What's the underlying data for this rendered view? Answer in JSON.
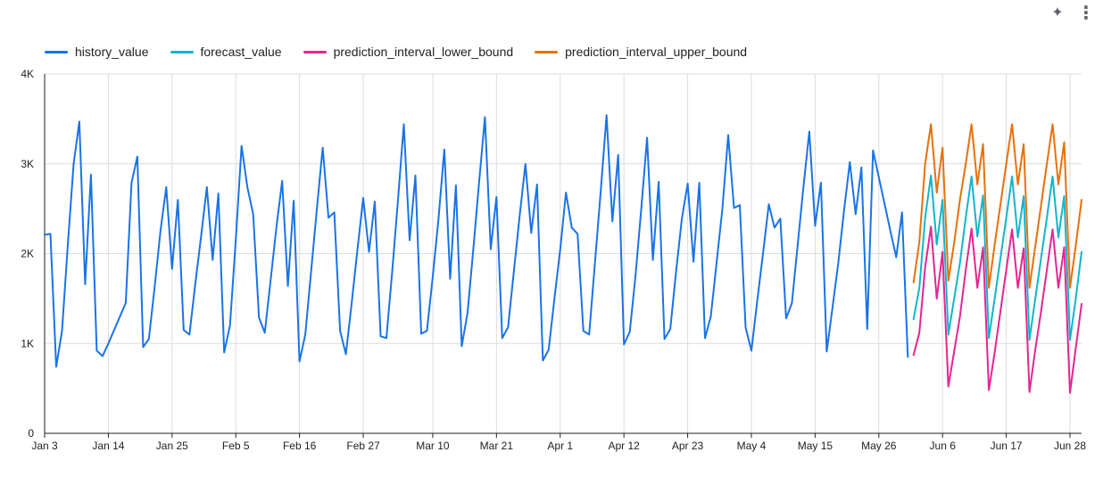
{
  "toolbar": {
    "icons": [
      "sparkle-icon",
      "more-vert-icon"
    ],
    "sparkle_glyph": "✦",
    "menu_glyph": "⋮"
  },
  "colors": {
    "history_value": "#1a73e8",
    "forecast_value": "#12b5cb",
    "prediction_interval_lower_bound": "#e52592",
    "prediction_interval_upper_bound": "#e8710a",
    "grid": "#dadce0",
    "axis": "#202124"
  },
  "chart_data": {
    "type": "line",
    "title": "",
    "xlabel": "",
    "ylabel": "",
    "x_start": "Jan 3",
    "x_end": "Jun 30",
    "x_tick_labels": [
      "Jan 3",
      "Jan 14",
      "Jan 25",
      "Feb 5",
      "Feb 16",
      "Feb 27",
      "Mar 10",
      "Mar 21",
      "Apr 1",
      "Apr 12",
      "Apr 23",
      "May 4",
      "May 15",
      "May 26",
      "Jun 6",
      "Jun 17",
      "Jun 28"
    ],
    "y_tick_labels": [
      "0",
      "1K",
      "2K",
      "3K",
      "4K"
    ],
    "ylim": [
      0,
      4000
    ],
    "y_ticks": [
      0,
      1000,
      2000,
      3000,
      4000
    ],
    "grid": true,
    "legend_position": "top-left",
    "series": [
      {
        "name": "history_value",
        "start": "Jan 3",
        "values": [
          2210,
          2220,
          740,
          1140,
          2100,
          3000,
          3470,
          1660,
          2880,
          920,
          860,
          1000,
          1150,
          1300,
          1450,
          2790,
          3080,
          960,
          1050,
          1630,
          2250,
          2740,
          1830,
          2600,
          1150,
          1100,
          1660,
          2190,
          2740,
          1930,
          2670,
          900,
          1200,
          2150,
          3200,
          2740,
          2440,
          1290,
          1120,
          1700,
          2290,
          2810,
          1640,
          2590,
          800,
          1100,
          1800,
          2500,
          3180,
          2400,
          2460,
          1140,
          880,
          1450,
          2040,
          2620,
          2020,
          2580,
          1080,
          1060,
          1800,
          2600,
          3440,
          2150,
          2870,
          1110,
          1140,
          1740,
          2390,
          3160,
          1720,
          2760,
          970,
          1340,
          2050,
          2800,
          3520,
          2050,
          2630,
          1060,
          1180,
          1800,
          2420,
          3000,
          2230,
          2770,
          810,
          930,
          1500,
          2050,
          2680,
          2290,
          2220,
          1140,
          1100,
          1900,
          2700,
          3540,
          2360,
          3100,
          990,
          1130,
          1750,
          2500,
          3290,
          1930,
          2800,
          1050,
          1160,
          1800,
          2390,
          2780,
          1910,
          2790,
          1060,
          1300,
          1900,
          2500,
          3320,
          2510,
          2540,
          1180,
          920,
          1470,
          2000,
          2550,
          2290,
          2390,
          1280,
          1450,
          2100,
          2750,
          3360,
          2310,
          2790,
          910,
          1400,
          1900,
          2480,
          3020,
          2440,
          2960,
          1160,
          3150,
          2850,
          2550,
          2250,
          1960,
          2460,
          850
        ]
      },
      {
        "name": "forecast_value",
        "start": "Jun 1",
        "values": [
          1270,
          1620,
          2400,
          2870,
          2100,
          2600,
          1100,
          1500,
          1900,
          2400,
          2860,
          2190,
          2650,
          1060,
          1500,
          1950,
          2400,
          2860,
          2180,
          2640,
          1040,
          1500,
          1950,
          2400,
          2860,
          2180,
          2640,
          1040,
          1500,
          2020
        ]
      },
      {
        "name": "prediction_interval_lower_bound",
        "start": "Jun 1",
        "values": [
          870,
          1120,
          1850,
          2300,
          1500,
          2020,
          520,
          910,
          1300,
          1820,
          2280,
          1620,
          2070,
          480,
          900,
          1360,
          1820,
          2270,
          1620,
          2060,
          460,
          930,
          1360,
          1820,
          2270,
          1620,
          2070,
          450,
          950,
          1440
        ]
      },
      {
        "name": "prediction_interval_upper_bound",
        "start": "Jun 1",
        "values": [
          1680,
          2130,
          3000,
          3440,
          2680,
          3180,
          1700,
          2120,
          2600,
          3000,
          3440,
          2770,
          3220,
          1620,
          2100,
          2550,
          3000,
          3440,
          2770,
          3220,
          1620,
          2080,
          2540,
          3000,
          3440,
          2770,
          3240,
          1620,
          2090,
          2600
        ]
      }
    ]
  }
}
